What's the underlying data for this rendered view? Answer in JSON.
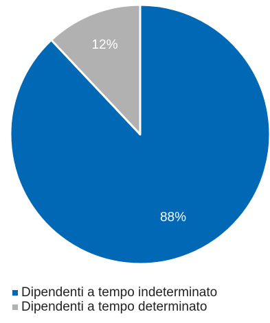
{
  "chart_data": {
    "type": "pie",
    "title": "",
    "slices": [
      {
        "label": "Dipendenti a tempo indeterminato",
        "value": 88,
        "display": "88%",
        "color": "#0068b4",
        "text_color": "#ffffff"
      },
      {
        "label": "Dipendenti a tempo determinato",
        "value": 12,
        "display": "12%",
        "color": "#b1b1b1",
        "text_color": "#ffffff"
      }
    ],
    "start_angle_deg": 0,
    "direction": "clockwise",
    "legend_position": "bottom-left"
  }
}
